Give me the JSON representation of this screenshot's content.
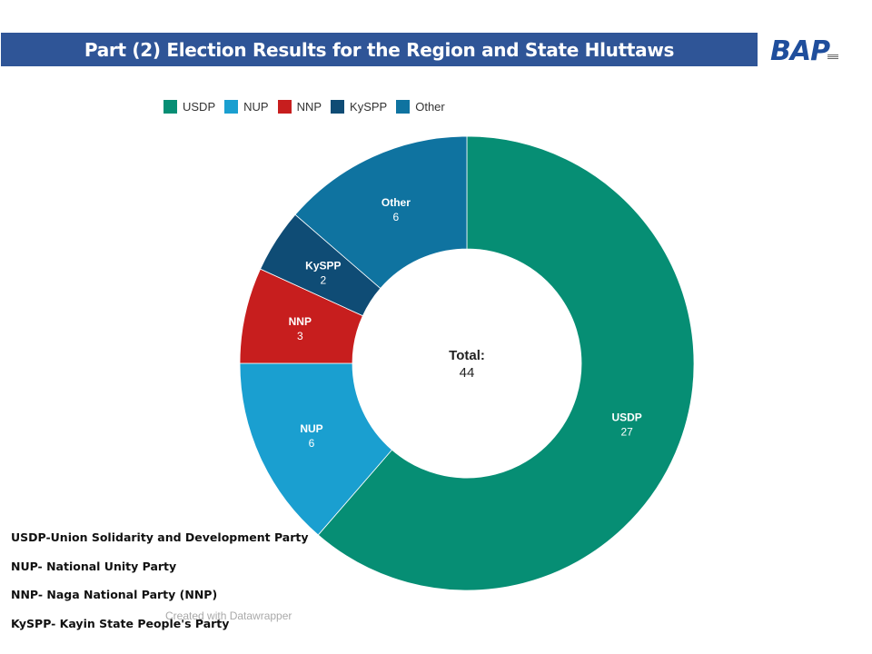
{
  "header": {
    "title": "Part (2) Election Results for the Region and State Hluttaws",
    "logo_text": "BAP"
  },
  "chart_data": {
    "type": "pie",
    "variant": "donut",
    "title": "Part (2) Election Results for the Region and State Hluttaws",
    "categories": [
      "USDP",
      "NUP",
      "NNP",
      "KySPP",
      "Other"
    ],
    "values": [
      27,
      6,
      3,
      2,
      6
    ],
    "colors": [
      "#068e74",
      "#1a9fd0",
      "#c71e1e",
      "#0f4c75",
      "#0f73a0"
    ],
    "center_label": "Total:",
    "center_value": "44",
    "legend_position": "top",
    "start": "12 o'clock",
    "direction": "clockwise"
  },
  "legend": [
    {
      "label": "USDP",
      "color": "#068e74"
    },
    {
      "label": "NUP",
      "color": "#1a9fd0"
    },
    {
      "label": "NNP",
      "color": "#c71e1e"
    },
    {
      "label": "KySPP",
      "color": "#0f4c75"
    },
    {
      "label": "Other",
      "color": "#0f73a0"
    }
  ],
  "abbreviations": [
    "USDP-Union Solidarity and Development Party",
    "NUP- National Unity Party",
    "NNP- Naga National Party (NNP)",
    "KySPP- Kayin State People's Party"
  ],
  "credit": "Created with Datawrapper"
}
